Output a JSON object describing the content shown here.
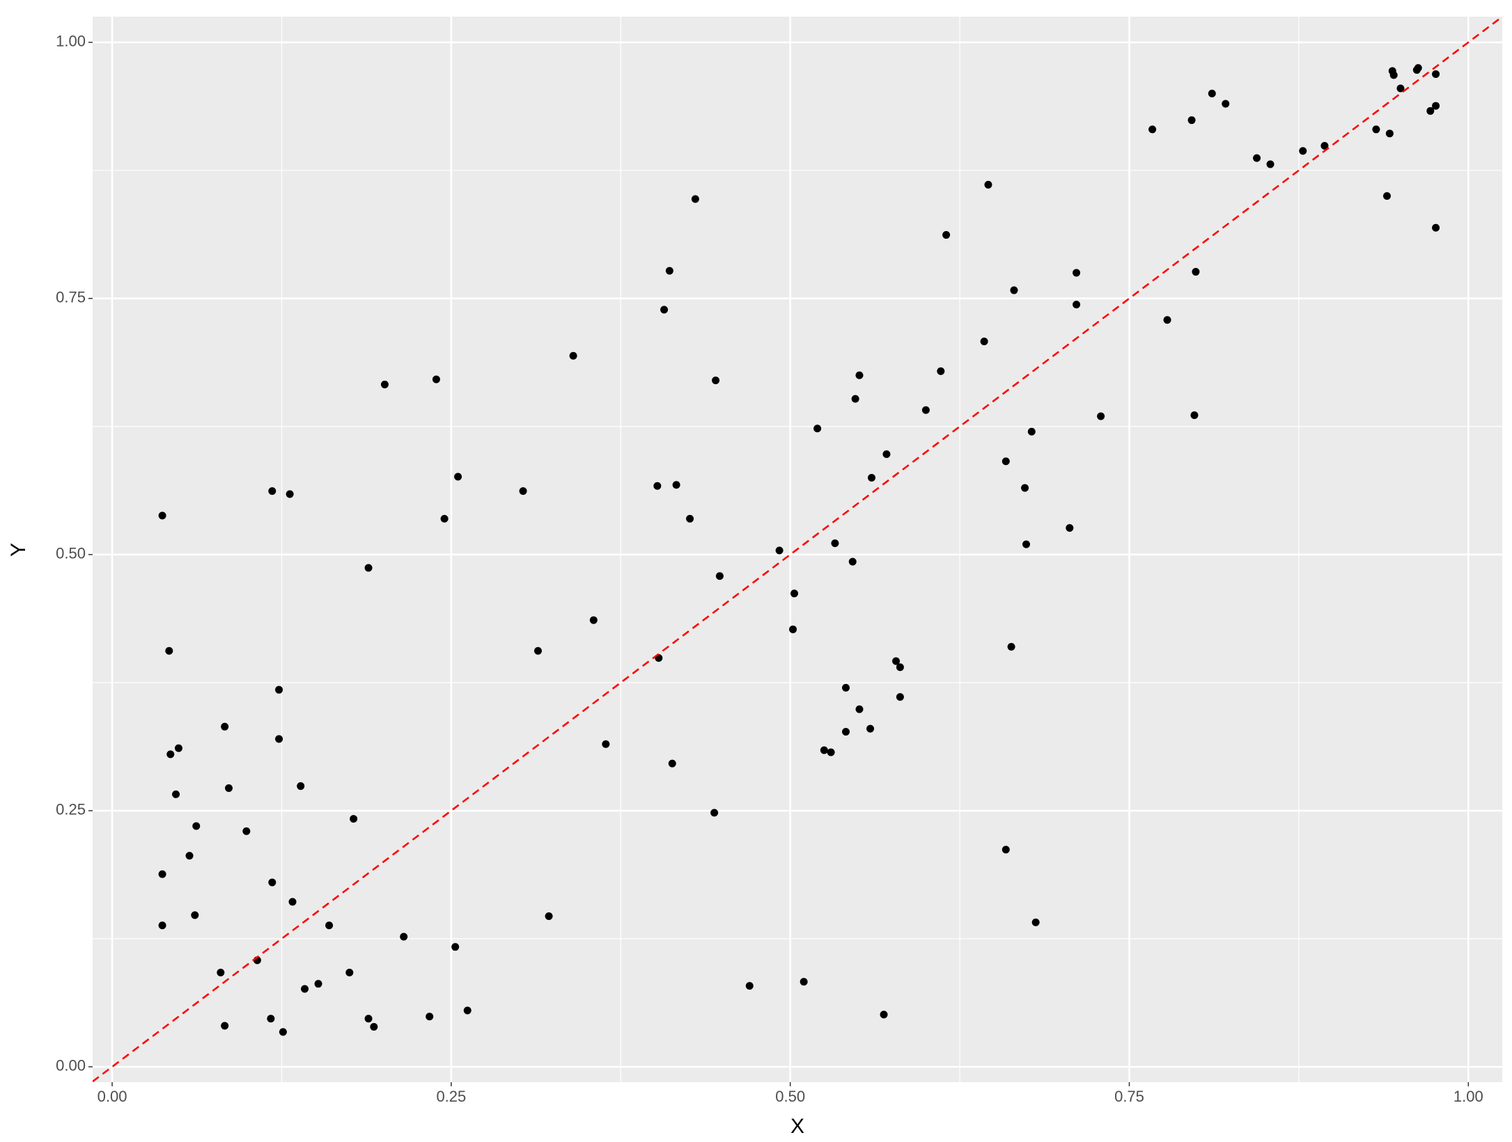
{
  "chart_data": {
    "type": "scatter",
    "xlabel": "X",
    "ylabel": "Y",
    "x": [
      0.037,
      0.042,
      0.043,
      0.049,
      0.047,
      0.062,
      0.057,
      0.037,
      0.037,
      0.061,
      0.083,
      0.086,
      0.099,
      0.08,
      0.083,
      0.107,
      0.118,
      0.131,
      0.123,
      0.123,
      0.139,
      0.118,
      0.133,
      0.16,
      0.117,
      0.126,
      0.142,
      0.152,
      0.175,
      0.178,
      0.189,
      0.201,
      0.189,
      0.193,
      0.215,
      0.239,
      0.245,
      0.255,
      0.253,
      0.234,
      0.262,
      0.303,
      0.314,
      0.322,
      0.34,
      0.355,
      0.364,
      0.43,
      0.411,
      0.407,
      0.445,
      0.402,
      0.416,
      0.426,
      0.403,
      0.413,
      0.448,
      0.444,
      0.47,
      0.51,
      0.492,
      0.503,
      0.502,
      0.52,
      0.533,
      0.546,
      0.525,
      0.53,
      0.541,
      0.541,
      0.551,
      0.551,
      0.548,
      0.56,
      0.571,
      0.559,
      0.578,
      0.581,
      0.581,
      0.569,
      0.6,
      0.611,
      0.615,
      0.646,
      0.643,
      0.665,
      0.659,
      0.673,
      0.674,
      0.678,
      0.663,
      0.659,
      0.681,
      0.706,
      0.711,
      0.711,
      0.729,
      0.767,
      0.778,
      0.796,
      0.799,
      0.798,
      0.811,
      0.821,
      0.844,
      0.854,
      0.878,
      0.894,
      0.932,
      0.942,
      0.94,
      0.944,
      0.945,
      0.95,
      0.962,
      0.963,
      0.972,
      0.976,
      0.976,
      0.976
    ],
    "values": [
      0.538,
      0.406,
      0.305,
      0.311,
      0.266,
      0.235,
      0.206,
      0.188,
      0.138,
      0.148,
      0.332,
      0.272,
      0.23,
      0.092,
      0.04,
      0.104,
      0.562,
      0.559,
      0.368,
      0.32,
      0.274,
      0.18,
      0.161,
      0.138,
      0.047,
      0.034,
      0.076,
      0.081,
      0.092,
      0.242,
      0.487,
      0.666,
      0.047,
      0.039,
      0.127,
      0.671,
      0.535,
      0.576,
      0.117,
      0.049,
      0.055,
      0.562,
      0.406,
      0.147,
      0.694,
      0.436,
      0.315,
      0.847,
      0.777,
      0.739,
      0.67,
      0.567,
      0.568,
      0.535,
      0.399,
      0.296,
      0.479,
      0.248,
      0.079,
      0.083,
      0.504,
      0.462,
      0.427,
      0.623,
      0.511,
      0.493,
      0.309,
      0.307,
      0.327,
      0.37,
      0.349,
      0.675,
      0.652,
      0.575,
      0.598,
      0.33,
      0.396,
      0.39,
      0.361,
      0.051,
      0.641,
      0.679,
      0.812,
      0.861,
      0.708,
      0.758,
      0.591,
      0.565,
      0.51,
      0.62,
      0.41,
      0.212,
      0.141,
      0.526,
      0.775,
      0.744,
      0.635,
      0.915,
      0.729,
      0.924,
      0.776,
      0.636,
      0.95,
      0.94,
      0.887,
      0.881,
      0.894,
      0.899,
      0.915,
      0.911,
      0.85,
      0.972,
      0.968,
      0.955,
      0.973,
      0.975,
      0.933,
      0.969,
      0.938,
      0.819
    ],
    "color": "#000000",
    "abline": {
      "intercept": 0,
      "slope": 1,
      "color": "#ff0000",
      "dashed": true
    },
    "xlim": [
      -0.0144,
      1.025
    ],
    "ylim": [
      -0.015,
      1.025
    ],
    "xticks": [
      {
        "value": 0,
        "label": "0.00"
      },
      {
        "value": 0.25,
        "label": "0.25"
      },
      {
        "value": 0.5,
        "label": "0.50"
      },
      {
        "value": 0.75,
        "label": "0.75"
      },
      {
        "value": 1,
        "label": "1.00"
      }
    ],
    "yticks": [
      {
        "value": 0,
        "label": "0.00"
      },
      {
        "value": 0.25,
        "label": "0.25"
      },
      {
        "value": 0.5,
        "label": "0.50"
      },
      {
        "value": 0.75,
        "label": "0.75"
      },
      {
        "value": 1,
        "label": "1.00"
      }
    ],
    "grid": true,
    "minor_grid": true,
    "panel_background": "#ebebeb"
  }
}
